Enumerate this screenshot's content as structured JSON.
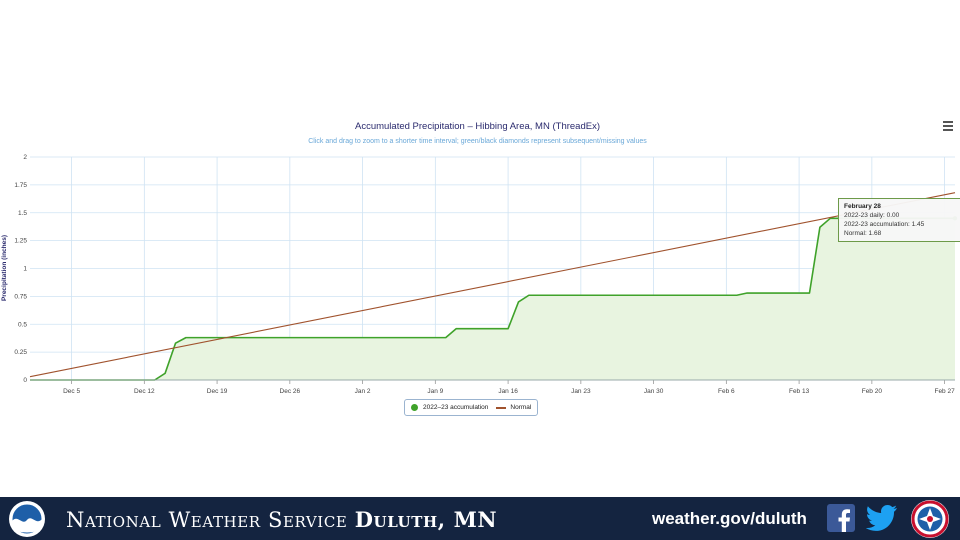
{
  "chart": {
    "title": "Accumulated Precipitation – Hibbing Area, MN (ThreadEx)",
    "subtitle": "Click and drag to zoom to a shorter time interval; green/black diamonds represent subsequent/missing values",
    "menu_icon": "hamburger-menu-icon"
  },
  "tooltip": {
    "date": "February 28",
    "daily": "2022-23 daily: 0.00",
    "accum": "2022-23 accumulation: 1.45",
    "normal": "Normal: 1.68"
  },
  "chart_data": {
    "type": "area",
    "title": "Accumulated Precipitation – Hibbing Area, MN (ThreadEx)",
    "xlabel": "",
    "ylabel": "Precipitation (inches)",
    "x_start": "Dec 1",
    "x_end": "Feb 28",
    "x_ticks": [
      "Dec 5",
      "Dec 12",
      "Dec 19",
      "Dec 26",
      "Jan 2",
      "Jan 9",
      "Jan 16",
      "Jan 23",
      "Jan 30",
      "Feb 6",
      "Feb 13",
      "Feb 20",
      "Feb 27"
    ],
    "y_ticks": [
      "0",
      "0.25",
      "0.5",
      "0.75",
      "1",
      "1.25",
      "1.5",
      "1.75",
      "2"
    ],
    "ylim": [
      0,
      2
    ],
    "grid": true,
    "legend": "bottom-center",
    "series": [
      {
        "name": "2022-23 accumulation",
        "color": "#3fa22a",
        "fill": "#e8f4e0",
        "points": [
          [
            "Dec 1",
            0
          ],
          [
            "Dec 13",
            0
          ],
          [
            "Dec 14",
            0.06
          ],
          [
            "Dec 15",
            0.33
          ],
          [
            "Dec 16",
            0.38
          ],
          [
            "Jan 10",
            0.38
          ],
          [
            "Jan 11",
            0.46
          ],
          [
            "Jan 16",
            0.46
          ],
          [
            "Jan 17",
            0.7
          ],
          [
            "Jan 18",
            0.76
          ],
          [
            "Feb 7",
            0.76
          ],
          [
            "Feb 8",
            0.78
          ],
          [
            "Feb 14",
            0.78
          ],
          [
            "Feb 15",
            1.37
          ],
          [
            "Feb 16",
            1.45
          ],
          [
            "Feb 28",
            1.45
          ]
        ]
      },
      {
        "name": "Normal",
        "color": "#a0522d",
        "points": [
          [
            "Dec 1",
            0.03
          ],
          [
            "Feb 28",
            1.68
          ]
        ]
      }
    ]
  },
  "legend": {
    "accum_label": "2022–23 accumulation",
    "normal_label": "Normal"
  },
  "footer": {
    "org": "National Weather Service",
    "office": "Duluth, MN",
    "url": "weather.gov/duluth",
    "bg_color": "#142440",
    "icons": [
      "noaa-logo",
      "facebook-icon",
      "twitter-icon",
      "nws-logo"
    ]
  }
}
